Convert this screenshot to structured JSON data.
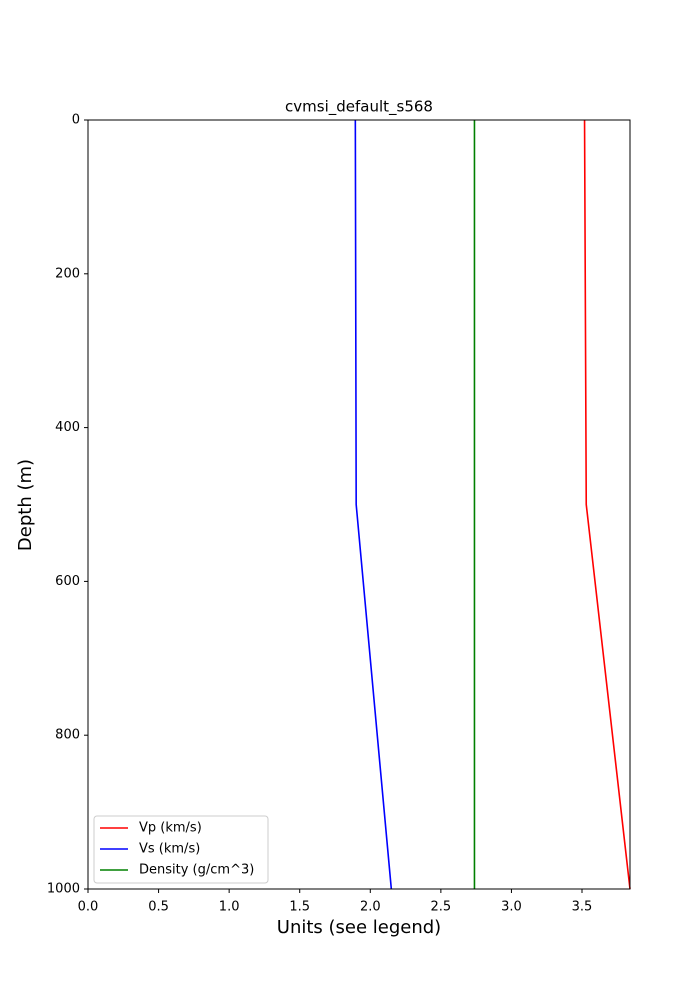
{
  "chart_data": {
    "type": "line",
    "title": "cvmsi_default_s568",
    "x_label": "Units (see legend)",
    "y_label": "Depth (m)",
    "y": [
      0,
      500,
      1000
    ],
    "series": [
      {
        "name": "Vp (km/s)",
        "color": "#ff0000",
        "values": [
          3.518,
          3.53,
          3.84
        ]
      },
      {
        "name": "Vs (km/s)",
        "color": "#0000ff",
        "values": [
          1.894,
          1.9,
          2.149
        ]
      },
      {
        "name": "Density (g/cm^3)",
        "color": "#008000",
        "values": [
          2.738,
          2.738,
          2.738
        ]
      }
    ],
    "xlim": [
      0,
      3.84
    ],
    "xticks": [
      {
        "value": 0,
        "label": "0.0"
      },
      {
        "value": 0.5,
        "label": "0.5"
      },
      {
        "value": 1,
        "label": "1.0"
      },
      {
        "value": 1.5,
        "label": "1.5"
      },
      {
        "value": 2,
        "label": "2.0"
      },
      {
        "value": 2.5,
        "label": "2.5"
      },
      {
        "value": 3,
        "label": "3.0"
      },
      {
        "value": 3.5,
        "label": "3.5"
      }
    ],
    "ylim": [
      0,
      1000
    ],
    "y_inverted": true,
    "yticks": [
      0,
      200,
      400,
      600,
      800,
      1000
    ],
    "grid": false,
    "legend": "lower left"
  }
}
